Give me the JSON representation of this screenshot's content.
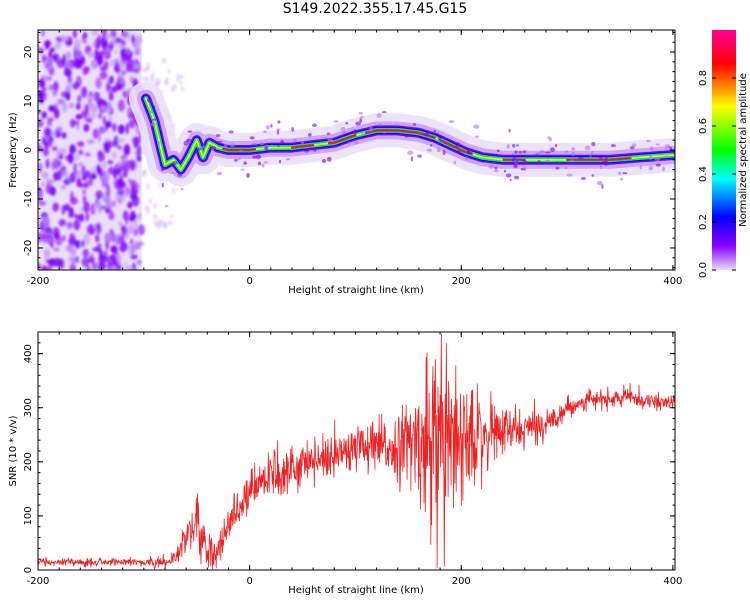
{
  "title": "S149.2022.355.17.45.G15",
  "chart_data": [
    {
      "type": "heatmap",
      "xlabel": "Height of straight line (km)",
      "ylabel": "Frequency (Hz)",
      "xlim": [
        -200,
        402
      ],
      "ylim": [
        -24.5,
        24.5
      ],
      "xticks": [
        -200,
        0,
        200,
        400
      ],
      "yticks": [
        -20,
        -10,
        0,
        10,
        20
      ],
      "colorbar": {
        "label": "Normalized spectral amplitude",
        "range": [
          0,
          1
        ],
        "ticks": [
          0.0,
          0.2,
          0.4,
          0.6,
          0.8
        ],
        "tick_labels": [
          "0.0",
          "0.2",
          "0.4",
          "0.6",
          "0.8"
        ],
        "colormap": [
          "#e6d8f5",
          "#7b00ff",
          "#0000ff",
          "#00ffff",
          "#00ff00",
          "#ffff00",
          "#ff0000",
          "#ff00aa"
        ]
      },
      "ridge": {
        "x": [
          -98,
          -90,
          -80,
          -72,
          -65,
          -58,
          -50,
          -44,
          -38,
          -30,
          -20,
          0,
          20,
          40,
          60,
          80,
          100,
          120,
          140,
          160,
          175,
          190,
          205,
          220,
          240,
          260,
          300,
          340,
          370,
          402
        ],
        "y": [
          10.5,
          6,
          -3,
          -2,
          -4,
          -1.5,
          2,
          -1.5,
          1.5,
          0.5,
          0,
          0,
          0.5,
          0.5,
          1,
          1.5,
          3,
          4,
          4,
          3.5,
          2.5,
          1,
          -0.5,
          -1.5,
          -2,
          -2,
          -2,
          -2,
          -1.5,
          -1
        ]
      },
      "noise_region_x": [
        -200,
        -102
      ]
    },
    {
      "type": "line",
      "xlabel": "Height of straight line (km)",
      "ylabel": "SNR (10 * v/v)",
      "xlim": [
        -200,
        402
      ],
      "ylim": [
        0,
        440
      ],
      "xticks": [
        -200,
        0,
        200,
        400
      ],
      "yticks": [
        0,
        100,
        200,
        300,
        400
      ],
      "line_color": "#ee2222",
      "trend": {
        "x": [
          -200,
          -100,
          -80,
          -70,
          -60,
          -50,
          -40,
          -30,
          -20,
          -10,
          0,
          20,
          40,
          60,
          80,
          100,
          120,
          140,
          160,
          180,
          200,
          220,
          240,
          260,
          280,
          300,
          320,
          340,
          360,
          380,
          402
        ],
        "y": [
          14,
          14,
          15,
          25,
          60,
          90,
          20,
          30,
          80,
          120,
          145,
          175,
          190,
          205,
          215,
          220,
          225,
          228,
          235,
          245,
          255,
          255,
          255,
          260,
          270,
          300,
          315,
          315,
          320,
          310,
          310
        ]
      },
      "noise_amplitude": {
        "x": [
          -200,
          -100,
          -70,
          -60,
          -50,
          -40,
          -20,
          0,
          100,
          140,
          160,
          180,
          200,
          220,
          240,
          260,
          300,
          402
        ],
        "y": [
          6,
          6,
          15,
          30,
          40,
          35,
          40,
          35,
          40,
          50,
          90,
          180,
          110,
          60,
          40,
          30,
          15,
          12
        ]
      }
    }
  ]
}
